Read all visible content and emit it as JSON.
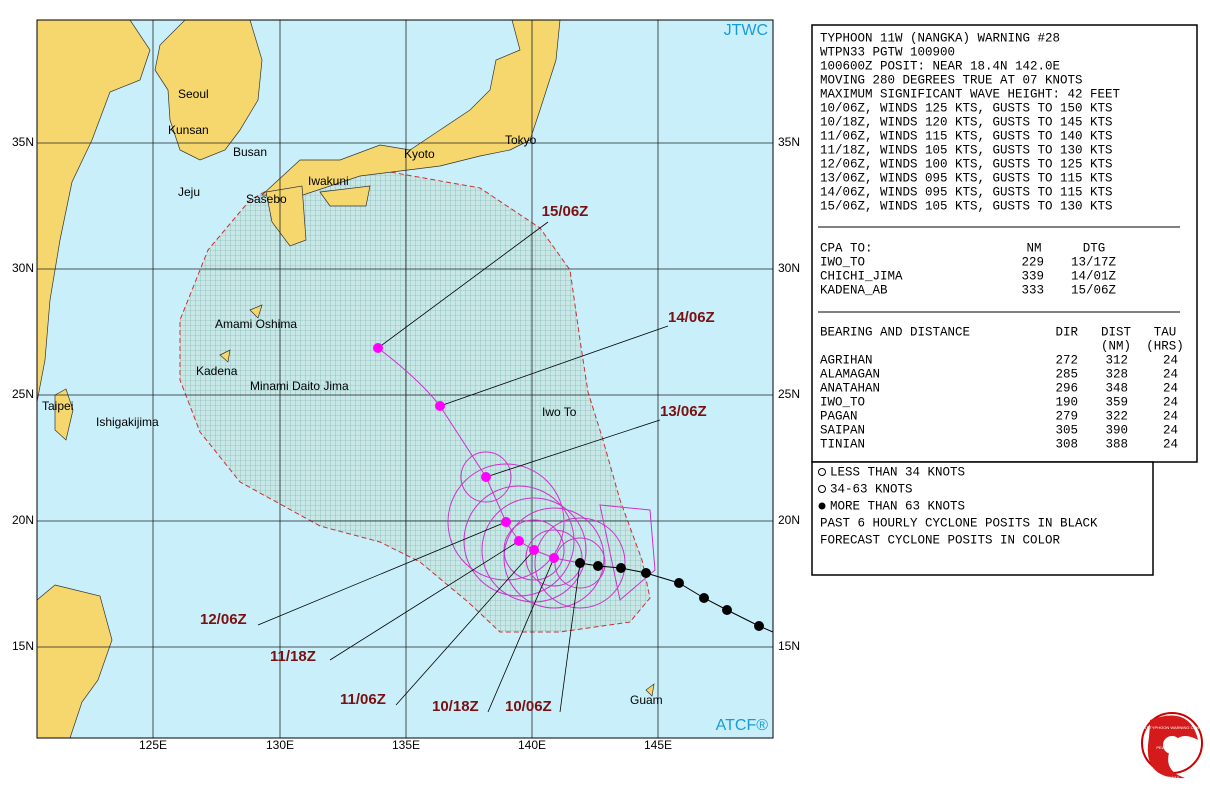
{
  "map": {
    "source_labels": [
      "JTWC",
      "ATCF®"
    ],
    "lat_labels": [
      "35N",
      "30N",
      "25N",
      "20N",
      "15N"
    ],
    "lon_labels": [
      "125E",
      "130E",
      "135E",
      "140E",
      "145E"
    ],
    "places": [
      "Seoul",
      "Kunsan",
      "Busan",
      "Jeju",
      "Sasebo",
      "Iwakuni",
      "Kyoto",
      "Tokyo",
      "Amami Oshima",
      "Kadena",
      "Minami Daito Jima",
      "Taipei",
      "Ishigakijima",
      "Iwo To",
      "Guam"
    ],
    "forecast_labels": [
      "15/06Z",
      "14/06Z",
      "13/06Z",
      "12/06Z",
      "11/18Z",
      "11/06Z",
      "10/18Z",
      "10/06Z"
    ]
  },
  "panel": {
    "header": [
      "TYPHOON 11W (NANGKA) WARNING #28",
      "WTPN33 PGTW 100900",
      "100600Z POSIT: NEAR 18.4N 142.0E",
      "MOVING 280 DEGREES TRUE AT 07 KNOTS",
      "MAXIMUM SIGNIFICANT WAVE HEIGHT: 42 FEET",
      "10/06Z, WINDS 125 KTS, GUSTS TO 150 KTS",
      "10/18Z, WINDS 120 KTS, GUSTS TO 145 KTS",
      "11/06Z, WINDS 115 KTS, GUSTS TO 140 KTS",
      "11/18Z, WINDS 105 KTS, GUSTS TO 130 KTS",
      "12/06Z, WINDS 100 KTS, GUSTS TO 125 KTS",
      "13/06Z, WINDS 095 KTS, GUSTS TO 115 KTS",
      "14/06Z, WINDS 095 KTS, GUSTS TO 115 KTS",
      "15/06Z, WINDS 105 KTS, GUSTS TO 130 KTS"
    ],
    "cpa": {
      "columns": [
        "CPA TO:",
        "NM",
        "DTG"
      ],
      "rows": [
        [
          "IWO_TO",
          "229",
          "13/17Z"
        ],
        [
          "CHICHI_JIMA",
          "339",
          "14/01Z"
        ],
        [
          "KADENA_AB",
          "333",
          "15/06Z"
        ]
      ]
    },
    "bearing": {
      "columns": [
        "BEARING AND DISTANCE",
        "DIR",
        "DIST",
        "TAU"
      ],
      "units": [
        "(NM)",
        "(HRS)"
      ],
      "rows": [
        [
          "AGRIHAN",
          "272",
          "312",
          "24"
        ],
        [
          "ALAMAGAN",
          "285",
          "328",
          "24"
        ],
        [
          "ANATAHAN",
          "296",
          "348",
          "24"
        ],
        [
          "IWO_TO",
          "190",
          "359",
          "24"
        ],
        [
          "PAGAN",
          "279",
          "322",
          "24"
        ],
        [
          "SAIPAN",
          "305",
          "390",
          "24"
        ],
        [
          "TINIAN",
          "308",
          "388",
          "24"
        ]
      ]
    }
  },
  "legend": [
    "LESS THAN 34 KNOTS",
    "34-63 KNOTS",
    "MORE THAN 63 KNOTS",
    "PAST 6 HOURLY CYCLONE POSITS IN BLACK",
    "FORECAST CYCLONE POSITS IN COLOR"
  ],
  "logo": [
    "JOINT TYPHOON WARNING CENTER",
    "PEARL HARBOR",
    "HAWAII"
  ]
}
